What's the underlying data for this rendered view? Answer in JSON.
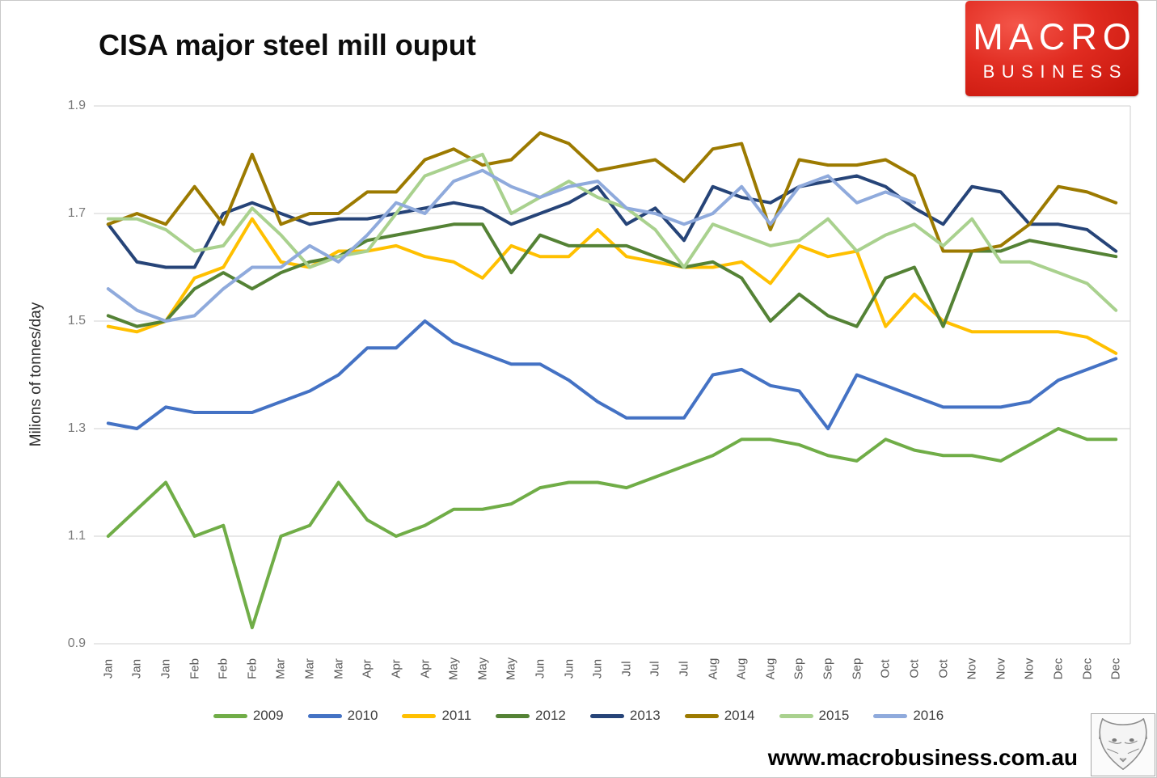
{
  "page": {
    "title": "CISA major steel mill ouput",
    "logo": {
      "line1": "MACRO",
      "line2": "BUSINESS",
      "bg_color": "#d6190f"
    },
    "footer_url": "www.macrobusiness.com.au",
    "footer_icon": "fox-sketch-icon"
  },
  "chart_data": {
    "type": "line",
    "title": "CISA major steel mill ouput",
    "xlabel": "",
    "ylabel": "Milions of tonnes/day",
    "ylim": [
      0.9,
      1.9
    ],
    "yticks": [
      "0.9",
      "1.1",
      "1.3",
      "1.5",
      "1.7",
      "1.9"
    ],
    "grid": "horizontal-only",
    "gridline_color": "#d9d9d9",
    "legend_position": "bottom",
    "categories": [
      "Jan",
      "Jan",
      "Jan",
      "Feb",
      "Feb",
      "Feb",
      "Mar",
      "Mar",
      "Mar",
      "Apr",
      "Apr",
      "Apr",
      "May",
      "May",
      "May",
      "Jun",
      "Jun",
      "Jun",
      "Jul",
      "Jul",
      "Jul",
      "Aug",
      "Aug",
      "Aug",
      "Sep",
      "Sep",
      "Sep",
      "Oct",
      "Oct",
      "Oct",
      "Nov",
      "Nov",
      "Nov",
      "Dec",
      "Dec",
      "Dec"
    ],
    "series": [
      {
        "name": "2009",
        "color": "#70ad47",
        "values": [
          1.1,
          1.15,
          1.2,
          1.1,
          1.12,
          0.93,
          1.1,
          1.12,
          1.2,
          1.13,
          1.1,
          1.12,
          1.15,
          1.15,
          1.16,
          1.19,
          1.2,
          1.2,
          1.19,
          1.21,
          1.23,
          1.25,
          1.28,
          1.28,
          1.27,
          1.25,
          1.24,
          1.28,
          1.26,
          1.25,
          1.25,
          1.24,
          1.27,
          1.3,
          1.28,
          1.28
        ]
      },
      {
        "name": "2010",
        "color": "#4472c4",
        "values": [
          1.31,
          1.3,
          1.34,
          1.33,
          1.33,
          1.33,
          1.35,
          1.37,
          1.4,
          1.45,
          1.45,
          1.5,
          1.46,
          1.44,
          1.42,
          1.42,
          1.39,
          1.35,
          1.32,
          1.32,
          1.32,
          1.4,
          1.41,
          1.38,
          1.37,
          1.3,
          1.4,
          1.38,
          1.36,
          1.34,
          1.34,
          1.34,
          1.35,
          1.39,
          1.41,
          1.43
        ]
      },
      {
        "name": "2011",
        "color": "#ffc000",
        "values": [
          1.49,
          1.48,
          1.5,
          1.58,
          1.6,
          1.69,
          1.61,
          1.6,
          1.63,
          1.63,
          1.64,
          1.62,
          1.61,
          1.58,
          1.64,
          1.62,
          1.62,
          1.67,
          1.62,
          1.61,
          1.6,
          1.6,
          1.61,
          1.57,
          1.64,
          1.62,
          1.63,
          1.49,
          1.55,
          1.5,
          1.48,
          1.48,
          1.48,
          1.48,
          1.47,
          1.44
        ]
      },
      {
        "name": "2012",
        "color": "#548235",
        "values": [
          1.51,
          1.49,
          1.5,
          1.56,
          1.59,
          1.56,
          1.59,
          1.61,
          1.62,
          1.65,
          1.66,
          1.67,
          1.68,
          1.68,
          1.59,
          1.66,
          1.64,
          1.64,
          1.64,
          1.62,
          1.6,
          1.61,
          1.58,
          1.5,
          1.55,
          1.51,
          1.49,
          1.58,
          1.6,
          1.49,
          1.63,
          1.63,
          1.65,
          1.64,
          1.63,
          1.62
        ]
      },
      {
        "name": "2013",
        "color": "#264478",
        "values": [
          1.68,
          1.61,
          1.6,
          1.6,
          1.7,
          1.72,
          1.7,
          1.68,
          1.69,
          1.69,
          1.7,
          1.71,
          1.72,
          1.71,
          1.68,
          1.7,
          1.72,
          1.75,
          1.68,
          1.71,
          1.65,
          1.75,
          1.73,
          1.72,
          1.75,
          1.76,
          1.77,
          1.75,
          1.71,
          1.68,
          1.75,
          1.74,
          1.68,
          1.68,
          1.67,
          1.63
        ]
      },
      {
        "name": "2014",
        "color": "#9c7a00",
        "values": [
          1.68,
          1.7,
          1.68,
          1.75,
          1.68,
          1.81,
          1.68,
          1.7,
          1.7,
          1.74,
          1.74,
          1.8,
          1.82,
          1.79,
          1.8,
          1.85,
          1.83,
          1.78,
          1.79,
          1.8,
          1.76,
          1.82,
          1.83,
          1.67,
          1.8,
          1.79,
          1.79,
          1.8,
          1.77,
          1.63,
          1.63,
          1.64,
          1.68,
          1.75,
          1.74,
          1.72
        ]
      },
      {
        "name": "2015",
        "color": "#a9d18e",
        "values": [
          1.69,
          1.69,
          1.67,
          1.63,
          1.64,
          1.71,
          1.66,
          1.6,
          1.62,
          1.63,
          1.7,
          1.77,
          1.79,
          1.81,
          1.7,
          1.73,
          1.76,
          1.73,
          1.71,
          1.67,
          1.6,
          1.68,
          1.66,
          1.64,
          1.65,
          1.69,
          1.63,
          1.66,
          1.68,
          1.64,
          1.69,
          1.61,
          1.61,
          1.59,
          1.57,
          1.52
        ]
      },
      {
        "name": "2016",
        "color": "#8faadc",
        "values": [
          1.56,
          1.52,
          1.5,
          1.51,
          1.56,
          1.6,
          1.6,
          1.64,
          1.61,
          1.66,
          1.72,
          1.7,
          1.76,
          1.78,
          1.75,
          1.73,
          1.75,
          1.76,
          1.71,
          1.7,
          1.68,
          1.7,
          1.75,
          1.68,
          1.75,
          1.77,
          1.72,
          1.74,
          1.72
        ]
      }
    ]
  }
}
